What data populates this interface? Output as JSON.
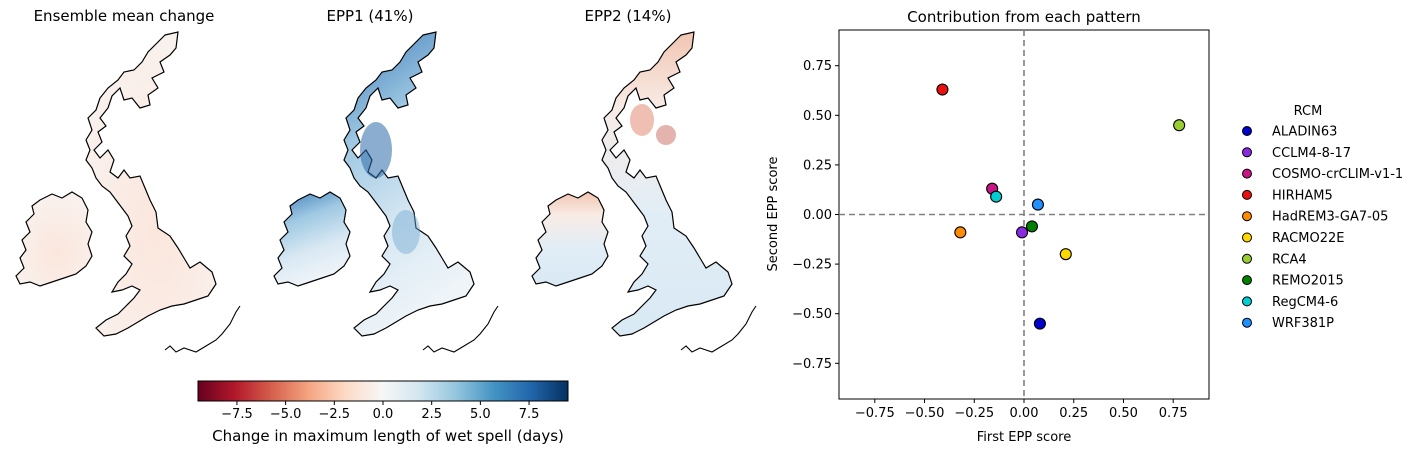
{
  "maps": {
    "titles": [
      "Ensemble mean change",
      "EPP1 (41%)",
      "EPP2 (14%)"
    ]
  },
  "colorbar": {
    "label": "Change in maximum length of wet spell (days)",
    "min": -9.5,
    "max": 9.5,
    "ticks": [
      -7.5,
      -5.0,
      -2.5,
      0.0,
      2.5,
      5.0,
      7.5
    ],
    "tick_labels": [
      "−7.5",
      "−5.0",
      "−2.5",
      "0.0",
      "2.5",
      "5.0",
      "7.5"
    ],
    "colormap": "RdBu",
    "colors": [
      "#67001f",
      "#b2182b",
      "#d6604d",
      "#f4a582",
      "#fddbc7",
      "#f7f7f7",
      "#d1e5f0",
      "#92c5de",
      "#4393c3",
      "#2166ac",
      "#053061"
    ]
  },
  "chart_data": {
    "type": "scatter",
    "title": "Contribution from each pattern",
    "xlabel": "First EPP score",
    "ylabel": "Second EPP score",
    "xlim": [
      -0.93,
      0.93
    ],
    "ylim": [
      -0.93,
      0.93
    ],
    "xticks": [
      -0.75,
      -0.5,
      -0.25,
      0.0,
      0.25,
      0.5,
      0.75
    ],
    "xtick_labels": [
      "−0.75",
      "−0.50",
      "−0.25",
      "0.00",
      "0.25",
      "0.50",
      "0.75"
    ],
    "yticks": [
      -0.75,
      -0.5,
      -0.25,
      0.0,
      0.25,
      0.5,
      0.75
    ],
    "ytick_labels": [
      "−0.75",
      "−0.50",
      "−0.25",
      "0.00",
      "0.25",
      "0.50",
      "0.75"
    ],
    "reference_lines": {
      "x": 0.0,
      "y": 0.0,
      "style": "dashed",
      "color": "#808080"
    },
    "legend_title": "RCM",
    "legend_position": "right",
    "series": [
      {
        "name": "ALADIN63",
        "color": "#0000cc",
        "x": 0.08,
        "y": -0.55
      },
      {
        "name": "CCLM4-8-17",
        "color": "#8a2be2",
        "x": -0.01,
        "y": -0.09
      },
      {
        "name": "COSMO-crCLIM-v1-1",
        "color": "#c71585",
        "x": -0.16,
        "y": 0.13
      },
      {
        "name": "HIRHAM5",
        "color": "#e8110f",
        "x": -0.41,
        "y": 0.63
      },
      {
        "name": "HadREM3-GA7-05",
        "color": "#ff8c00",
        "x": -0.32,
        "y": -0.09
      },
      {
        "name": "RACMO22E",
        "color": "#ffd700",
        "x": 0.21,
        "y": -0.2
      },
      {
        "name": "RCA4",
        "color": "#9acd32",
        "x": 0.78,
        "y": 0.45
      },
      {
        "name": "REMO2015",
        "color": "#008000",
        "x": 0.04,
        "y": -0.06
      },
      {
        "name": "RegCM4-6",
        "color": "#00ced1",
        "x": -0.14,
        "y": 0.09
      },
      {
        "name": "WRF381P",
        "color": "#1e90ff",
        "x": 0.07,
        "y": 0.05
      }
    ]
  }
}
